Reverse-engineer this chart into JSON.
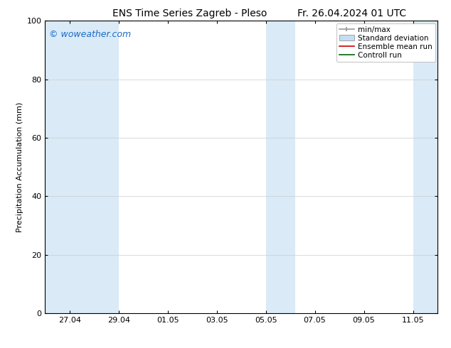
{
  "title_left": "ENS Time Series Zagreb - Pleso",
  "title_right": "Fr. 26.04.2024 01 UTC",
  "ylabel": "Precipitation Accumulation (mm)",
  "ylim": [
    0,
    100
  ],
  "yticks": [
    0,
    20,
    40,
    60,
    80,
    100
  ],
  "background_color": "#ffffff",
  "plot_bg_color": "#ffffff",
  "watermark": "© woweather.com",
  "watermark_color": "#1a6bc4",
  "x_tick_labels": [
    "27.04",
    "29.04",
    "01.05",
    "03.05",
    "05.05",
    "07.05",
    "09.05",
    "11.05"
  ],
  "shaded_band_color": "#daeaf7",
  "legend_entries": [
    {
      "label": "min/max",
      "color": "#999999"
    },
    {
      "label": "Standard deviation",
      "color": "#c5ddf0"
    },
    {
      "label": "Ensemble mean run",
      "color": "#cc0000"
    },
    {
      "label": "Controll run",
      "color": "#006600"
    }
  ],
  "font_family": "DejaVu Sans",
  "font_size_title": 10,
  "font_size_tick": 8,
  "font_size_legend": 7.5,
  "font_size_ylabel": 8,
  "font_size_watermark": 9
}
